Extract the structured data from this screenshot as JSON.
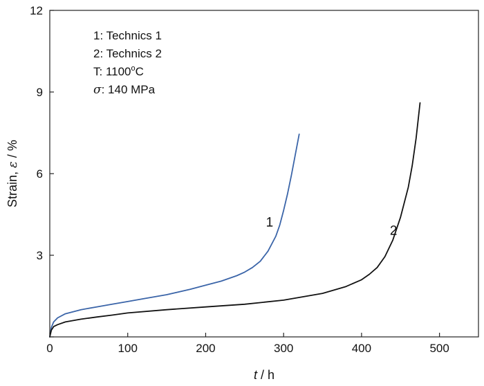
{
  "chart_data": {
    "type": "line",
    "xlabel": "t / h",
    "ylabel": "Strain, ε / %",
    "xlim": [
      0,
      550
    ],
    "ylim": [
      0,
      12
    ],
    "x_ticks": [
      0,
      100,
      200,
      300,
      400,
      500
    ],
    "y_ticks": [
      3,
      6,
      9,
      12
    ],
    "grid": false,
    "legend_placement": "top-left",
    "legend_lines": [
      "1: Technics 1",
      "2: Technics 2",
      "T: 1100°C",
      "σ: 140 MPa"
    ],
    "series": [
      {
        "name": "1",
        "color": "#3a64a8",
        "x": [
          0,
          2,
          5,
          10,
          20,
          40,
          60,
          80,
          100,
          120,
          150,
          180,
          200,
          220,
          240,
          250,
          260,
          270,
          280,
          290,
          295,
          300,
          305,
          310,
          315,
          320
        ],
        "y": [
          0,
          0.35,
          0.55,
          0.7,
          0.85,
          1.0,
          1.1,
          1.2,
          1.3,
          1.4,
          1.55,
          1.75,
          1.9,
          2.05,
          2.25,
          2.38,
          2.55,
          2.78,
          3.15,
          3.7,
          4.1,
          4.65,
          5.25,
          5.95,
          6.7,
          7.45
        ]
      },
      {
        "name": "2",
        "color": "#111111",
        "x": [
          0,
          2,
          5,
          10,
          20,
          40,
          60,
          80,
          100,
          150,
          200,
          250,
          300,
          350,
          380,
          400,
          410,
          420,
          430,
          440,
          450,
          460,
          465,
          470,
          475
        ],
        "y": [
          0,
          0.25,
          0.38,
          0.45,
          0.55,
          0.65,
          0.73,
          0.8,
          0.88,
          1.0,
          1.1,
          1.2,
          1.35,
          1.6,
          1.85,
          2.1,
          2.3,
          2.55,
          2.95,
          3.55,
          4.4,
          5.5,
          6.3,
          7.3,
          8.6
        ]
      }
    ],
    "annotations": [
      {
        "text": "1",
        "x": 282,
        "y": 4.05
      },
      {
        "text": "2",
        "x": 441,
        "y": 3.75
      }
    ]
  }
}
